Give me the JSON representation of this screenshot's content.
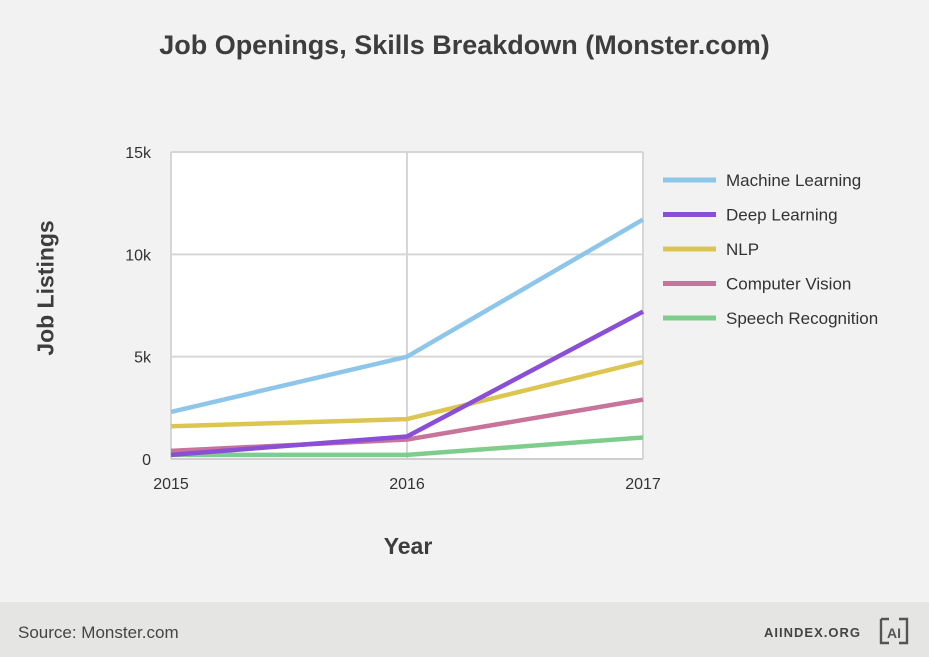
{
  "title": "Job Openings, Skills Breakdown (Monster.com)",
  "footer": {
    "source": "Source: Monster.com",
    "brand": "AIINDEX.ORG",
    "logo_text": "AI"
  },
  "chart_data": {
    "type": "line",
    "title": "Job Openings, Skills Breakdown (Monster.com)",
    "xlabel": "Year",
    "ylabel": "Job Listings",
    "x": [
      2015,
      2016,
      2017
    ],
    "x_tick_labels": [
      "2015",
      "2016",
      "2017"
    ],
    "ylim": [
      0,
      15000
    ],
    "y_ticks": [
      0,
      5000,
      10000,
      15000
    ],
    "y_tick_labels": [
      "0",
      "5k",
      "10k",
      "15k"
    ],
    "grid": true,
    "legend_position": "right",
    "series": [
      {
        "name": "Machine Learning",
        "color": "#8ec6ea",
        "values": [
          2300,
          5000,
          11700
        ]
      },
      {
        "name": "Deep Learning",
        "color": "#8a4fd6",
        "values": [
          200,
          1100,
          7200
        ]
      },
      {
        "name": "NLP",
        "color": "#dcc651",
        "values": [
          1600,
          1950,
          4750
        ]
      },
      {
        "name": "Computer Vision",
        "color": "#c7739a",
        "values": [
          400,
          950,
          2900
        ]
      },
      {
        "name": "Speech Recognition",
        "color": "#7fcd8c",
        "values": [
          200,
          200,
          1050
        ]
      }
    ]
  }
}
